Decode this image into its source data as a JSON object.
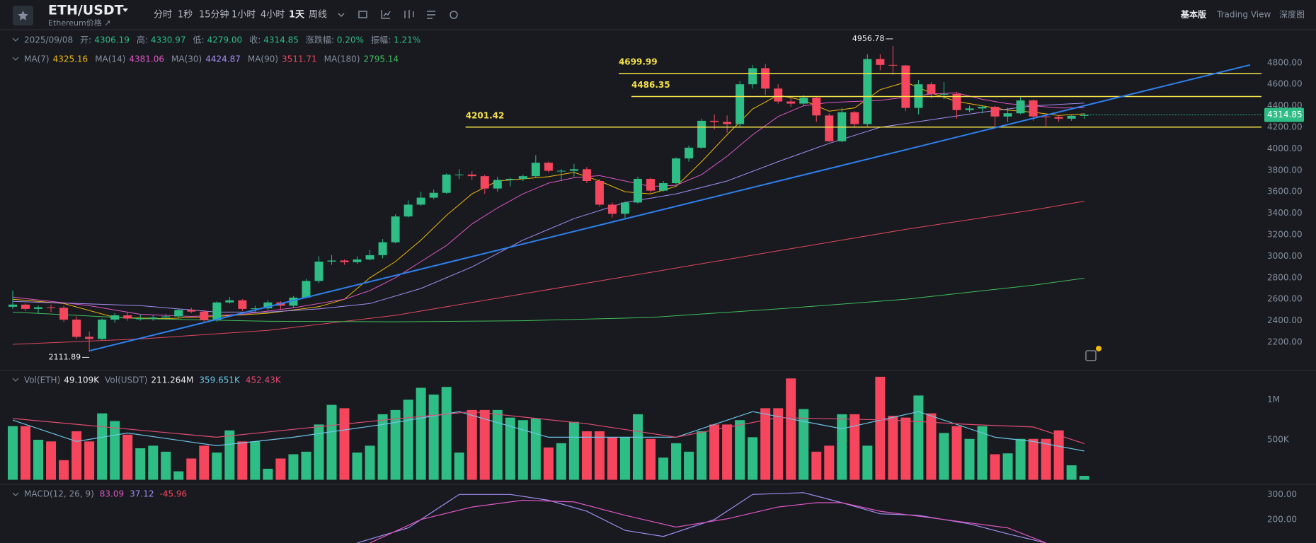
{
  "header": {
    "symbol": "ETH/USDT",
    "name": "Ethereum价格 ↗",
    "intervals": [
      "分时",
      "1秒",
      "15分钟",
      "1小时",
      "4小时",
      "1天",
      "周线"
    ],
    "views": [
      "基本版",
      "Trading View",
      "深度图"
    ]
  },
  "chart_data": [
    {
      "type": "candlestick",
      "info_bar": [
        "2025/09/08",
        "开:",
        "4306.19",
        "高:",
        "4330.97",
        "低:",
        "4279.00",
        "收:",
        "4314.85",
        "涨跌幅:",
        "0.20%",
        "振幅:",
        "1.21%"
      ],
      "up_color": "#2ebd85",
      "down_color": "#f6465d",
      "ylim": [
        1950,
        5075
      ],
      "yticks": [
        {
          "value": 2200,
          "label": "2200.00"
        },
        {
          "value": 2400,
          "label": "2400.00"
        },
        {
          "value": 2600,
          "label": "2600.00"
        },
        {
          "value": 2800,
          "label": "2800.00"
        },
        {
          "value": 3000,
          "label": "3000.00"
        },
        {
          "value": 3200,
          "label": "3200.00"
        },
        {
          "value": 3400,
          "label": "3400.00"
        },
        {
          "value": 3600,
          "label": "3600.00"
        },
        {
          "value": 3800,
          "label": "3800.00"
        },
        {
          "value": 4000,
          "label": "4000.00"
        },
        {
          "value": 4200,
          "label": "4200.00"
        },
        {
          "value": 4400,
          "label": "4400.00"
        },
        {
          "value": 4600,
          "label": "4600.00"
        },
        {
          "value": 4800,
          "label": "4800.00"
        }
      ],
      "ohlc": [
        [
          2530,
          2680,
          2510,
          2550
        ],
        [
          2550,
          2560,
          2490,
          2510
        ],
        [
          2510,
          2540,
          2470,
          2525
        ],
        [
          2525,
          2550,
          2480,
          2520
        ],
        [
          2520,
          2540,
          2390,
          2410
        ],
        [
          2410,
          2440,
          2230,
          2250
        ],
        [
          2250,
          2300,
          2111.89,
          2230
        ],
        [
          2230,
          2420,
          2220,
          2410
        ],
        [
          2410,
          2470,
          2380,
          2450
        ],
        [
          2450,
          2480,
          2400,
          2420
        ],
        [
          2420,
          2460,
          2400,
          2420
        ],
        [
          2420,
          2450,
          2400,
          2430
        ],
        [
          2430,
          2460,
          2410,
          2440
        ],
        [
          2440,
          2510,
          2430,
          2500
        ],
        [
          2500,
          2520,
          2470,
          2485
        ],
        [
          2485,
          2500,
          2390,
          2405
        ],
        [
          2405,
          2580,
          2390,
          2570
        ],
        [
          2570,
          2620,
          2560,
          2590
        ],
        [
          2590,
          2600,
          2490,
          2510
        ],
        [
          2510,
          2540,
          2480,
          2515
        ],
        [
          2515,
          2590,
          2500,
          2570
        ],
        [
          2570,
          2580,
          2500,
          2540
        ],
        [
          2540,
          2630,
          2520,
          2615
        ],
        [
          2615,
          2790,
          2610,
          2770
        ],
        [
          2770,
          3000,
          2750,
          2950
        ],
        [
          2950,
          3010,
          2920,
          2960
        ],
        [
          2960,
          2970,
          2920,
          2945
        ],
        [
          2945,
          3000,
          2930,
          2970
        ],
        [
          2970,
          3060,
          2960,
          3010
        ],
        [
          3010,
          3160,
          2980,
          3130
        ],
        [
          3130,
          3390,
          3120,
          3370
        ],
        [
          3370,
          3520,
          3360,
          3480
        ],
        [
          3480,
          3600,
          3470,
          3545
        ],
        [
          3545,
          3620,
          3530,
          3590
        ],
        [
          3590,
          3770,
          3580,
          3760
        ],
        [
          3760,
          3810,
          3720,
          3760
        ],
        [
          3760,
          3790,
          3710,
          3745
        ],
        [
          3745,
          3760,
          3580,
          3630
        ],
        [
          3630,
          3740,
          3600,
          3710
        ],
        [
          3710,
          3730,
          3650,
          3720
        ],
        [
          3720,
          3760,
          3700,
          3745
        ],
        [
          3745,
          3940,
          3730,
          3870
        ],
        [
          3870,
          3880,
          3780,
          3795
        ],
        [
          3795,
          3810,
          3700,
          3795
        ],
        [
          3795,
          3860,
          3740,
          3810
        ],
        [
          3810,
          3830,
          3680,
          3700
        ],
        [
          3700,
          3720,
          3460,
          3480
        ],
        [
          3480,
          3500,
          3360,
          3395
        ],
        [
          3395,
          3510,
          3350,
          3500
        ],
        [
          3500,
          3740,
          3490,
          3720
        ],
        [
          3720,
          3730,
          3580,
          3610
        ],
        [
          3610,
          3700,
          3600,
          3680
        ],
        [
          3680,
          3920,
          3670,
          3910
        ],
        [
          3910,
          4030,
          3880,
          4010
        ],
        [
          4010,
          4280,
          4000,
          4260
        ],
        [
          4260,
          4320,
          4180,
          4250
        ],
        [
          4250,
          4310,
          4150,
          4230
        ],
        [
          4230,
          4630,
          4200,
          4600
        ],
        [
          4600,
          4780,
          4560,
          4750
        ],
        [
          4750,
          4790,
          4500,
          4560
        ],
        [
          4560,
          4600,
          4420,
          4440
        ],
        [
          4440,
          4480,
          4390,
          4420
        ],
        [
          4420,
          4500,
          4400,
          4475
        ],
        [
          4475,
          4490,
          4250,
          4310
        ],
        [
          4310,
          4330,
          4060,
          4070
        ],
        [
          4070,
          4380,
          4060,
          4340
        ],
        [
          4340,
          4350,
          4200,
          4230
        ],
        [
          4230,
          4880,
          4210,
          4835
        ],
        [
          4835,
          4880,
          4730,
          4780
        ],
        [
          4780,
          4956.78,
          4690,
          4775
        ],
        [
          4775,
          4780,
          4350,
          4380
        ],
        [
          4380,
          4640,
          4320,
          4600
        ],
        [
          4600,
          4620,
          4470,
          4510
        ],
        [
          4510,
          4620,
          4460,
          4510
        ],
        [
          4510,
          4530,
          4280,
          4360
        ],
        [
          4360,
          4400,
          4340,
          4375
        ],
        [
          4375,
          4400,
          4330,
          4390
        ],
        [
          4390,
          4400,
          4210,
          4300
        ],
        [
          4300,
          4380,
          4250,
          4330
        ],
        [
          4330,
          4480,
          4320,
          4450
        ],
        [
          4450,
          4460,
          4260,
          4300
        ],
        [
          4300,
          4320,
          4210,
          4295
        ],
        [
          4295,
          4310,
          4250,
          4280
        ],
        [
          4280,
          4320,
          4260,
          4306.19
        ],
        [
          4306.19,
          4330.97,
          4279,
          4314.85
        ]
      ],
      "moving_averages": [
        {
          "name": "MA(7)",
          "color": "#f0b90b",
          "x": [
            0,
            4,
            8,
            12,
            16,
            20,
            24,
            26,
            28,
            30,
            32,
            34,
            36,
            38,
            40,
            42,
            44,
            46,
            48,
            50,
            52,
            54,
            56,
            58,
            60,
            62,
            64,
            66,
            68,
            70,
            72,
            74,
            76,
            78,
            80,
            82,
            84
          ],
          "values": [
            2600,
            2560,
            2430,
            2420,
            2440,
            2470,
            2530,
            2600,
            2800,
            2950,
            3150,
            3380,
            3580,
            3700,
            3720,
            3740,
            3780,
            3700,
            3600,
            3580,
            3650,
            3880,
            4130,
            4370,
            4500,
            4450,
            4350,
            4380,
            4550,
            4620,
            4520,
            4440,
            4400,
            4360,
            4340,
            4310,
            4325.16
          ]
        },
        {
          "name": "MA(14)",
          "color": "#e056c4",
          "x": [
            0,
            6,
            10,
            14,
            18,
            22,
            26,
            28,
            30,
            32,
            34,
            36,
            38,
            40,
            42,
            44,
            46,
            48,
            50,
            52,
            54,
            56,
            58,
            60,
            62,
            64,
            66,
            68,
            70,
            72,
            74,
            76,
            78,
            80,
            82,
            84
          ],
          "values": [
            2620,
            2540,
            2460,
            2440,
            2460,
            2520,
            2600,
            2680,
            2800,
            2950,
            3100,
            3300,
            3450,
            3580,
            3680,
            3730,
            3750,
            3700,
            3650,
            3660,
            3760,
            3930,
            4130,
            4300,
            4400,
            4430,
            4440,
            4450,
            4480,
            4510,
            4520,
            4460,
            4420,
            4400,
            4380,
            4381.06
          ]
        },
        {
          "name": "MA(30)",
          "color": "#a48cf0",
          "x": [
            0,
            10,
            16,
            20,
            24,
            28,
            32,
            36,
            40,
            44,
            48,
            52,
            56,
            60,
            64,
            68,
            72,
            76,
            80,
            84
          ],
          "values": [
            2580,
            2540,
            2480,
            2480,
            2510,
            2560,
            2700,
            2900,
            3150,
            3350,
            3500,
            3580,
            3700,
            3880,
            4050,
            4200,
            4270,
            4340,
            4400,
            4424.87
          ]
        },
        {
          "name": "MA(90)",
          "color": "#e0475a",
          "x": [
            0,
            10,
            20,
            30,
            40,
            50,
            60,
            70,
            80,
            84
          ],
          "values": [
            2180,
            2230,
            2310,
            2450,
            2650,
            2850,
            3050,
            3250,
            3430,
            3511.71
          ]
        },
        {
          "name": "MA(180)",
          "color": "#3fbf5a",
          "x": [
            0,
            10,
            20,
            30,
            40,
            50,
            60,
            70,
            80,
            84
          ],
          "values": [
            2480,
            2420,
            2395,
            2390,
            2400,
            2430,
            2510,
            2600,
            2730,
            2795.14
          ]
        }
      ],
      "levels": [
        {
          "value": 4699.99,
          "x": 48
        },
        {
          "value": 4486.35,
          "x": 49
        },
        {
          "value": 4201.42,
          "x": 36
        }
      ],
      "level_color": "#f5e14a",
      "trend_line": {
        "color": "#2f80ed",
        "x": [
          6,
          97
        ],
        "values": [
          2120,
          4780
        ]
      }
    },
    {
      "type": "bar",
      "legend": [
        {
          "name": "Vol(ETH)",
          "text": "49.109K"
        },
        {
          "name": "Vol(USDT)",
          "text": "211.264M"
        }
      ],
      "ylim": [
        -30,
        1330
      ],
      "yticks": [
        {
          "value": 500,
          "label": "500K"
        },
        {
          "value": 1000,
          "label": "1M"
        }
      ],
      "values": [
        670,
        670,
        500,
        479,
        245,
        606,
        479,
        830,
        734,
        564,
        394,
        426,
        351,
        106,
        266,
        426,
        340,
        617,
        479,
        479,
        138,
        266,
        319,
        351,
        691,
        936,
        894,
        340,
        426,
        819,
        872,
        1000,
        1149,
        1064,
        1160,
        340,
        872,
        872,
        872,
        777,
        745,
        766,
        404,
        457,
        723,
        606,
        606,
        532,
        532,
        819,
        511,
        277,
        457,
        351,
        606,
        691,
        691,
        745,
        532,
        894,
        894,
        1266,
        883,
        351,
        426,
        819,
        819,
        426,
        1287,
        798,
        777,
        1053,
        830,
        585,
        670,
        511,
        670,
        319,
        330,
        511,
        511,
        511,
        617,
        181,
        49.109
      ],
      "series": [
        {
          "label": "359.651K",
          "color": "#6cc6e6",
          "x": [
            0,
            5,
            9,
            16,
            22,
            29,
            35,
            42,
            52,
            58,
            65,
            71,
            77,
            80,
            84
          ],
          "values": [
            745,
            479,
            585,
            426,
            532,
            691,
            851,
            532,
            532,
            851,
            638,
            851,
            532,
            479,
            359.651
          ]
        },
        {
          "label": "452.43K",
          "color": "#e04c70",
          "x": [
            0,
            16,
            29,
            36,
            45,
            52,
            60,
            69,
            75,
            80,
            84
          ],
          "values": [
            766,
            532,
            745,
            851,
            700,
            532,
            777,
            745,
            691,
            660,
            452.43
          ]
        }
      ]
    },
    {
      "type": "line",
      "name": "MACD(12, 26, 9)",
      "legend": [
        {
          "value": 83.09,
          "color": "#e056c4"
        },
        {
          "value": 37.12,
          "color": "#a48cf0"
        },
        {
          "value": -45.96,
          "color": "#f6465d"
        }
      ],
      "ylim": [
        106.7,
        323.3
      ],
      "yticks": [
        {
          "value": 200,
          "label": "200.00"
        },
        {
          "value": 300,
          "label": "300.00"
        }
      ],
      "series": [
        {
          "color": "#a48cf0",
          "x": [
            27,
            31,
            35,
            39,
            42,
            45,
            48,
            51,
            55,
            58,
            62,
            65,
            68,
            71,
            75,
            78,
            81
          ],
          "values": [
            107,
            167,
            300,
            300,
            277,
            233,
            157,
            133,
            200,
            300,
            307,
            267,
            223,
            217,
            183,
            143,
            107
          ]
        },
        {
          "color": "#e056c4",
          "x": [
            28,
            32,
            36,
            40,
            44,
            48,
            52,
            56,
            60,
            63,
            65,
            68,
            73,
            78,
            81
          ],
          "values": [
            107,
            200,
            250,
            277,
            270,
            217,
            170,
            203,
            250,
            267,
            267,
            233,
            200,
            167,
            107
          ]
        }
      ]
    }
  ]
}
